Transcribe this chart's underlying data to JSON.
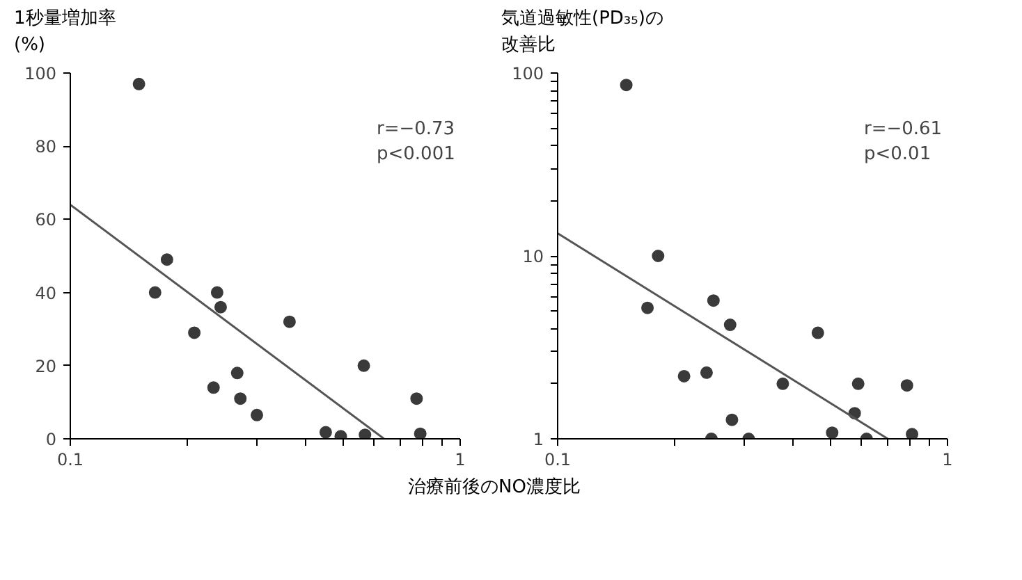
{
  "chart_data": [
    {
      "type": "scatter",
      "ylabel": "1秒量増加率\n(%)",
      "xlabel": "治療前後のNO濃度比",
      "log": "x",
      "grid": false,
      "xlim": [
        0.1,
        1
      ],
      "xticks": [
        0.1,
        {
          "value": 0.2,
          "label": null
        },
        {
          "value": 0.3,
          "label": null
        },
        {
          "value": 0.4,
          "label": null
        },
        {
          "value": 0.5,
          "label": null
        },
        {
          "value": 0.6,
          "label": null
        },
        {
          "value": 0.7,
          "label": null
        },
        {
          "value": 0.8,
          "label": null
        },
        {
          "value": 0.9,
          "label": null
        },
        1
      ],
      "ylim": [
        0,
        100
      ],
      "yticks": [
        0,
        20,
        40,
        60,
        80,
        100
      ],
      "annotations": [
        "r=−0.73",
        "p<0.001"
      ],
      "series": [
        {
          "color": "#3a3a3a",
          "marker": "circle",
          "x": [
            0.15,
            0.177,
            0.165,
            0.208,
            0.238,
            0.243,
            0.365,
            0.233,
            0.268,
            0.273,
            0.301,
            0.452,
            0.494,
            0.566,
            0.57,
            0.773,
            0.79
          ],
          "values": [
            97,
            49,
            40,
            29,
            40,
            36,
            32,
            14,
            18,
            11,
            6.5,
            1.8,
            0.7,
            20,
            1.1,
            11,
            1.4
          ]
        },
        {
          "type": "line",
          "color": "#555555",
          "x": [
            0.1,
            0.638
          ],
          "values": [
            64,
            0
          ]
        }
      ]
    },
    {
      "type": "scatter",
      "ylabel": "気道過敏性(PD₃₅)の改善比",
      "log": "xy",
      "grid": false,
      "xlim": [
        0.1,
        1
      ],
      "xticks": [
        0.1,
        {
          "value": 0.2,
          "label": null
        },
        {
          "value": 0.3,
          "label": null
        },
        {
          "value": 0.4,
          "label": null
        },
        {
          "value": 0.5,
          "label": null
        },
        {
          "value": 0.6,
          "label": null
        },
        {
          "value": 0.7,
          "label": null
        },
        {
          "value": 0.8,
          "label": null
        },
        {
          "value": 0.9,
          "label": null
        },
        1
      ],
      "ylim": [
        1,
        100
      ],
      "yticks": [
        1,
        {
          "value": 2,
          "label": null
        },
        {
          "value": 3,
          "label": null
        },
        {
          "value": 4,
          "label": null
        },
        {
          "value": 5,
          "label": null
        },
        {
          "value": 6,
          "label": null
        },
        {
          "value": 7,
          "label": null
        },
        {
          "value": 8,
          "label": null
        },
        {
          "value": 9,
          "label": null
        },
        10,
        {
          "value": 20,
          "label": null
        },
        {
          "value": 30,
          "label": null
        },
        {
          "value": 40,
          "label": null
        },
        {
          "value": 50,
          "label": null
        },
        {
          "value": 60,
          "label": null
        },
        {
          "value": 70,
          "label": null
        },
        {
          "value": 80,
          "label": null
        },
        {
          "value": 90,
          "label": null
        },
        100
      ],
      "annotations": [
        "r=−0.61",
        "p<0.01"
      ],
      "series": [
        {
          "color": "#3a3a3a",
          "marker": "circle",
          "x": [
            0.15,
            0.181,
            0.17,
            0.211,
            0.241,
            0.251,
            0.277,
            0.248,
            0.28,
            0.309,
            0.378,
            0.465,
            0.506,
            0.59,
            0.578,
            0.62,
            0.787,
            0.811
          ],
          "values": [
            86,
            10,
            5.2,
            2.2,
            2.3,
            5.7,
            4.2,
            1.0,
            1.27,
            1.0,
            2.0,
            3.8,
            1.08,
            2.0,
            1.38,
            1.0,
            1.96,
            1.06
          ]
        },
        {
          "type": "line",
          "color": "#555555",
          "x": [
            0.1,
            0.703
          ],
          "values": [
            13.3,
            1.0
          ]
        }
      ]
    }
  ]
}
